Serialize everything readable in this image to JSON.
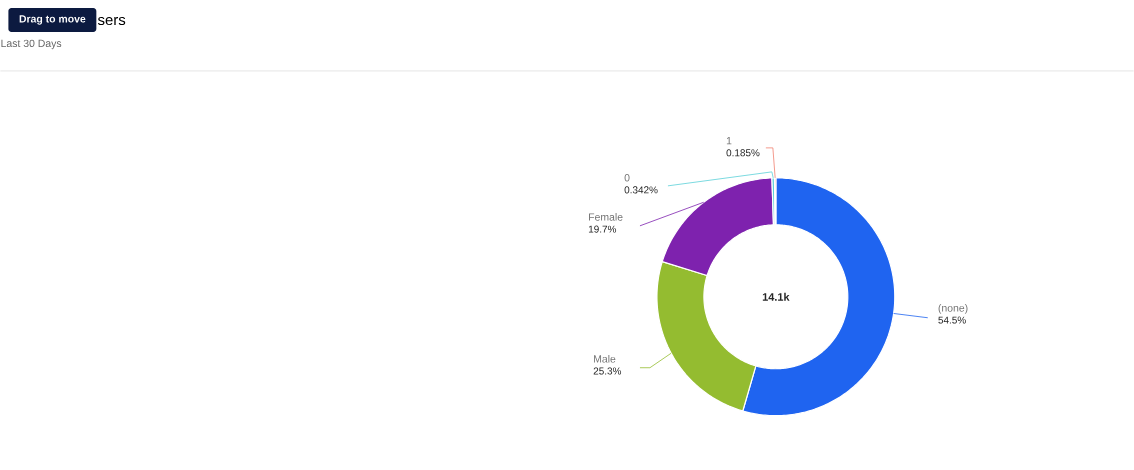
{
  "chart_data": {
    "type": "donut",
    "title": "sers",
    "subtitle": "Last 30 Days",
    "categories": [
      "(none)",
      "Male",
      "Female",
      "0",
      "1"
    ],
    "values": [
      54.5,
      25.3,
      19.7,
      0.342,
      0.185
    ],
    "value_labels": [
      "54.5%",
      "25.3%",
      "19.7%",
      "0.342%",
      "0.185%"
    ],
    "colors": [
      "#1f64f0",
      "#94bc30",
      "#7e22ae",
      "#5ad0d8",
      "#f08070"
    ],
    "annotations": [
      "14.1k",
      "Drag to move"
    ]
  }
}
